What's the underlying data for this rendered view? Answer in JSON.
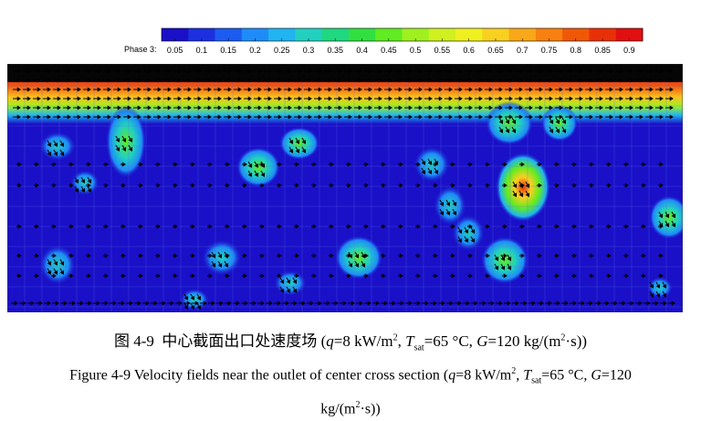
{
  "colorbar": {
    "label": "Phase 3:",
    "ticks": [
      "0.05",
      "0.1",
      "0.15",
      "0.2",
      "0.25",
      "0.3",
      "0.35",
      "0.4",
      "0.45",
      "0.5",
      "0.55",
      "0.6",
      "0.65",
      "0.7",
      "0.75",
      "0.8",
      "0.85",
      "0.9"
    ],
    "colors": [
      "#1a10c8",
      "#1c30e0",
      "#1c5cf0",
      "#1e8cf8",
      "#20b4f0",
      "#22d0c0",
      "#20d880",
      "#30e040",
      "#60ec20",
      "#a0f020",
      "#d0f020",
      "#f0f020",
      "#f8d020",
      "#f8a818",
      "#f88010",
      "#f05808",
      "#e83008",
      "#e01010"
    ]
  },
  "caption_cn": {
    "prefix": "图 4-9  中心截面出口处速度场 (",
    "q": "q",
    "q_val": "=8 kW/m",
    "q_sup": "2",
    "sep1": ", ",
    "T": "T",
    "T_sub": "sat",
    "T_val": "=65 °C, ",
    "G": "G",
    "G_val": "=120 kg/(m",
    "G_sup": "2",
    "suffix": "·s))"
  },
  "caption_en": {
    "prefix": "Figure 4-9 Velocity fields near the outlet of center cross section (",
    "q": "q",
    "q_val": "=8 kW/m",
    "q_sup": "2",
    "sep1": ", ",
    "T": "T",
    "T_sub": "sat",
    "T_val": "=65 °C, ",
    "G": "G",
    "G_val": "=120",
    "line2_a": "kg/(m",
    "line2_sup": "2",
    "line2_b": "·s))"
  }
}
